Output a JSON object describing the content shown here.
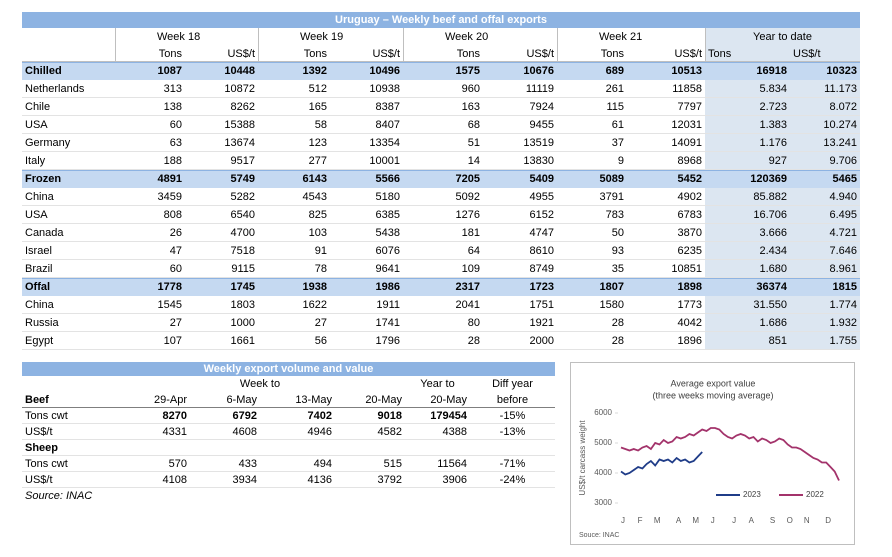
{
  "table1": {
    "title": "Uruguay – Weekly beef and offal exports",
    "header_weeks": [
      "Week 18",
      "Week 19",
      "Week 20",
      "Week 21",
      "Year to date"
    ],
    "header_units": [
      "Tons",
      "US$/t",
      "Tons",
      "US$/t",
      "Tons",
      "US$/t",
      "Tons",
      "US$/t",
      "Tons",
      "US$/t"
    ],
    "sections": [
      {
        "label": "Chilled",
        "values": [
          "1087",
          "10448",
          "1392",
          "10496",
          "1575",
          "10676",
          "689",
          "10513",
          "16918",
          "10323"
        ],
        "rows": [
          {
            "label": "Netherlands",
            "values": [
              "313",
              "10872",
              "512",
              "10938",
              "960",
              "11119",
              "261",
              "11858",
              "5.834",
              "11.173"
            ]
          },
          {
            "label": "Chile",
            "values": [
              "138",
              "8262",
              "165",
              "8387",
              "163",
              "7924",
              "115",
              "7797",
              "2.723",
              "8.072"
            ]
          },
          {
            "label": "USA",
            "values": [
              "60",
              "15388",
              "58",
              "8407",
              "68",
              "9455",
              "61",
              "12031",
              "1.383",
              "10.274"
            ]
          },
          {
            "label": "Germany",
            "values": [
              "63",
              "13674",
              "123",
              "13354",
              "51",
              "13519",
              "37",
              "14091",
              "1.176",
              "13.241"
            ]
          },
          {
            "label": "Italy",
            "values": [
              "188",
              "9517",
              "277",
              "10001",
              "14",
              "13830",
              "9",
              "8968",
              "927",
              "9.706"
            ]
          }
        ]
      },
      {
        "label": "Frozen",
        "values": [
          "4891",
          "5749",
          "6143",
          "5566",
          "7205",
          "5409",
          "5089",
          "5452",
          "120369",
          "5465"
        ],
        "rows": [
          {
            "label": "China",
            "values": [
              "3459",
              "5282",
              "4543",
              "5180",
              "5092",
              "4955",
              "3791",
              "4902",
              "85.882",
              "4.940"
            ]
          },
          {
            "label": "USA",
            "values": [
              "808",
              "6540",
              "825",
              "6385",
              "1276",
              "6152",
              "783",
              "6783",
              "16.706",
              "6.495"
            ]
          },
          {
            "label": "Canada",
            "values": [
              "26",
              "4700",
              "103",
              "5438",
              "181",
              "4747",
              "50",
              "3870",
              "3.666",
              "4.721"
            ]
          },
          {
            "label": "Israel",
            "values": [
              "47",
              "7518",
              "91",
              "6076",
              "64",
              "8610",
              "93",
              "6235",
              "2.434",
              "7.646"
            ]
          },
          {
            "label": "Brazil",
            "values": [
              "60",
              "9115",
              "78",
              "9641",
              "109",
              "8749",
              "35",
              "10851",
              "1.680",
              "8.961"
            ]
          }
        ]
      },
      {
        "label": "Offal",
        "values": [
          "1778",
          "1745",
          "1938",
          "1986",
          "2317",
          "1723",
          "1807",
          "1898",
          "36374",
          "1815"
        ],
        "rows": [
          {
            "label": "China",
            "values": [
              "1545",
              "1803",
              "1622",
              "1911",
              "2041",
              "1751",
              "1580",
              "1773",
              "31.550",
              "1.774"
            ]
          },
          {
            "label": "Russia",
            "values": [
              "27",
              "1000",
              "27",
              "1741",
              "80",
              "1921",
              "28",
              "4042",
              "1.686",
              "1.932"
            ]
          },
          {
            "label": "Egypt",
            "values": [
              "107",
              "1661",
              "56",
              "1796",
              "28",
              "2000",
              "28",
              "1896",
              "851",
              "1.755"
            ]
          }
        ]
      }
    ]
  },
  "table2": {
    "title": "Weekly export volume and value",
    "header": [
      "Week to",
      "Year to",
      "Diff year"
    ],
    "column_headers": [
      "29-Apr",
      "6-May",
      "13-May",
      "20-May",
      "20-May",
      "before"
    ],
    "sections": [
      {
        "label": "Beef",
        "rows": [
          {
            "label": "Tons cwt",
            "values": [
              "8270",
              "6792",
              "7402",
              "9018",
              "179454",
              "-15%"
            ]
          },
          {
            "label": "US$/t",
            "values": [
              "4331",
              "4608",
              "4946",
              "4582",
              "4388",
              "-13%"
            ]
          }
        ]
      },
      {
        "label": "Sheep",
        "rows": [
          {
            "label": "Tons cwt",
            "values": [
              "570",
              "433",
              "494",
              "515",
              "11564",
              "-71%"
            ]
          },
          {
            "label": "US$/t",
            "values": [
              "4108",
              "3934",
              "4136",
              "3792",
              "3906",
              "-24%"
            ]
          }
        ]
      }
    ],
    "source": "Source: INAC"
  },
  "chart_data": {
    "type": "line",
    "title": "Average export value",
    "subtitle": "(three weeks moving average)",
    "y_label": "US$/t carcass weight",
    "ylim": [
      3000,
      6000
    ],
    "yticks": [
      3000,
      4000,
      5000,
      6000
    ],
    "categories": [
      "J",
      null,
      null,
      null,
      "F",
      null,
      null,
      null,
      "M",
      null,
      null,
      null,
      null,
      "A",
      null,
      null,
      null,
      "M",
      null,
      null,
      null,
      "J",
      null,
      null,
      null,
      null,
      "J",
      null,
      null,
      null,
      "A",
      null,
      null,
      null,
      null,
      "S",
      null,
      null,
      null,
      "O",
      null,
      null,
      null,
      "N",
      null,
      null,
      null,
      null,
      "D",
      null,
      null,
      null
    ],
    "series": [
      {
        "name": "2023",
        "color": "#1f3c88",
        "values": [
          4050,
          3950,
          4000,
          4100,
          4200,
          4150,
          4300,
          4400,
          4250,
          4450,
          4400,
          4450,
          4350,
          4500,
          4400,
          4450,
          4350,
          4400,
          4550,
          4700,
          null,
          null,
          null,
          null,
          null,
          null,
          null,
          null,
          null,
          null,
          null,
          null,
          null,
          null,
          null,
          null,
          null,
          null,
          null,
          null,
          null,
          null,
          null,
          null,
          null,
          null,
          null,
          null,
          null,
          null,
          null,
          null
        ]
      },
      {
        "name": "2022",
        "color": "#a3336b",
        "values": [
          4850,
          4800,
          4750,
          4800,
          4750,
          4850,
          4900,
          4800,
          5000,
          4950,
          5100,
          5000,
          5050,
          5200,
          5150,
          5200,
          5300,
          5250,
          5350,
          5450,
          5400,
          5500,
          5500,
          5450,
          5300,
          5200,
          5150,
          5250,
          5300,
          5250,
          5150,
          5200,
          5050,
          5150,
          5100,
          5000,
          5050,
          5150,
          5100,
          4950,
          4850,
          4850,
          4800,
          4700,
          4600,
          4500,
          4450,
          4350,
          4350,
          4200,
          4050,
          3750
        ]
      }
    ],
    "legend": "bottom",
    "source": "Souce: INAC"
  }
}
